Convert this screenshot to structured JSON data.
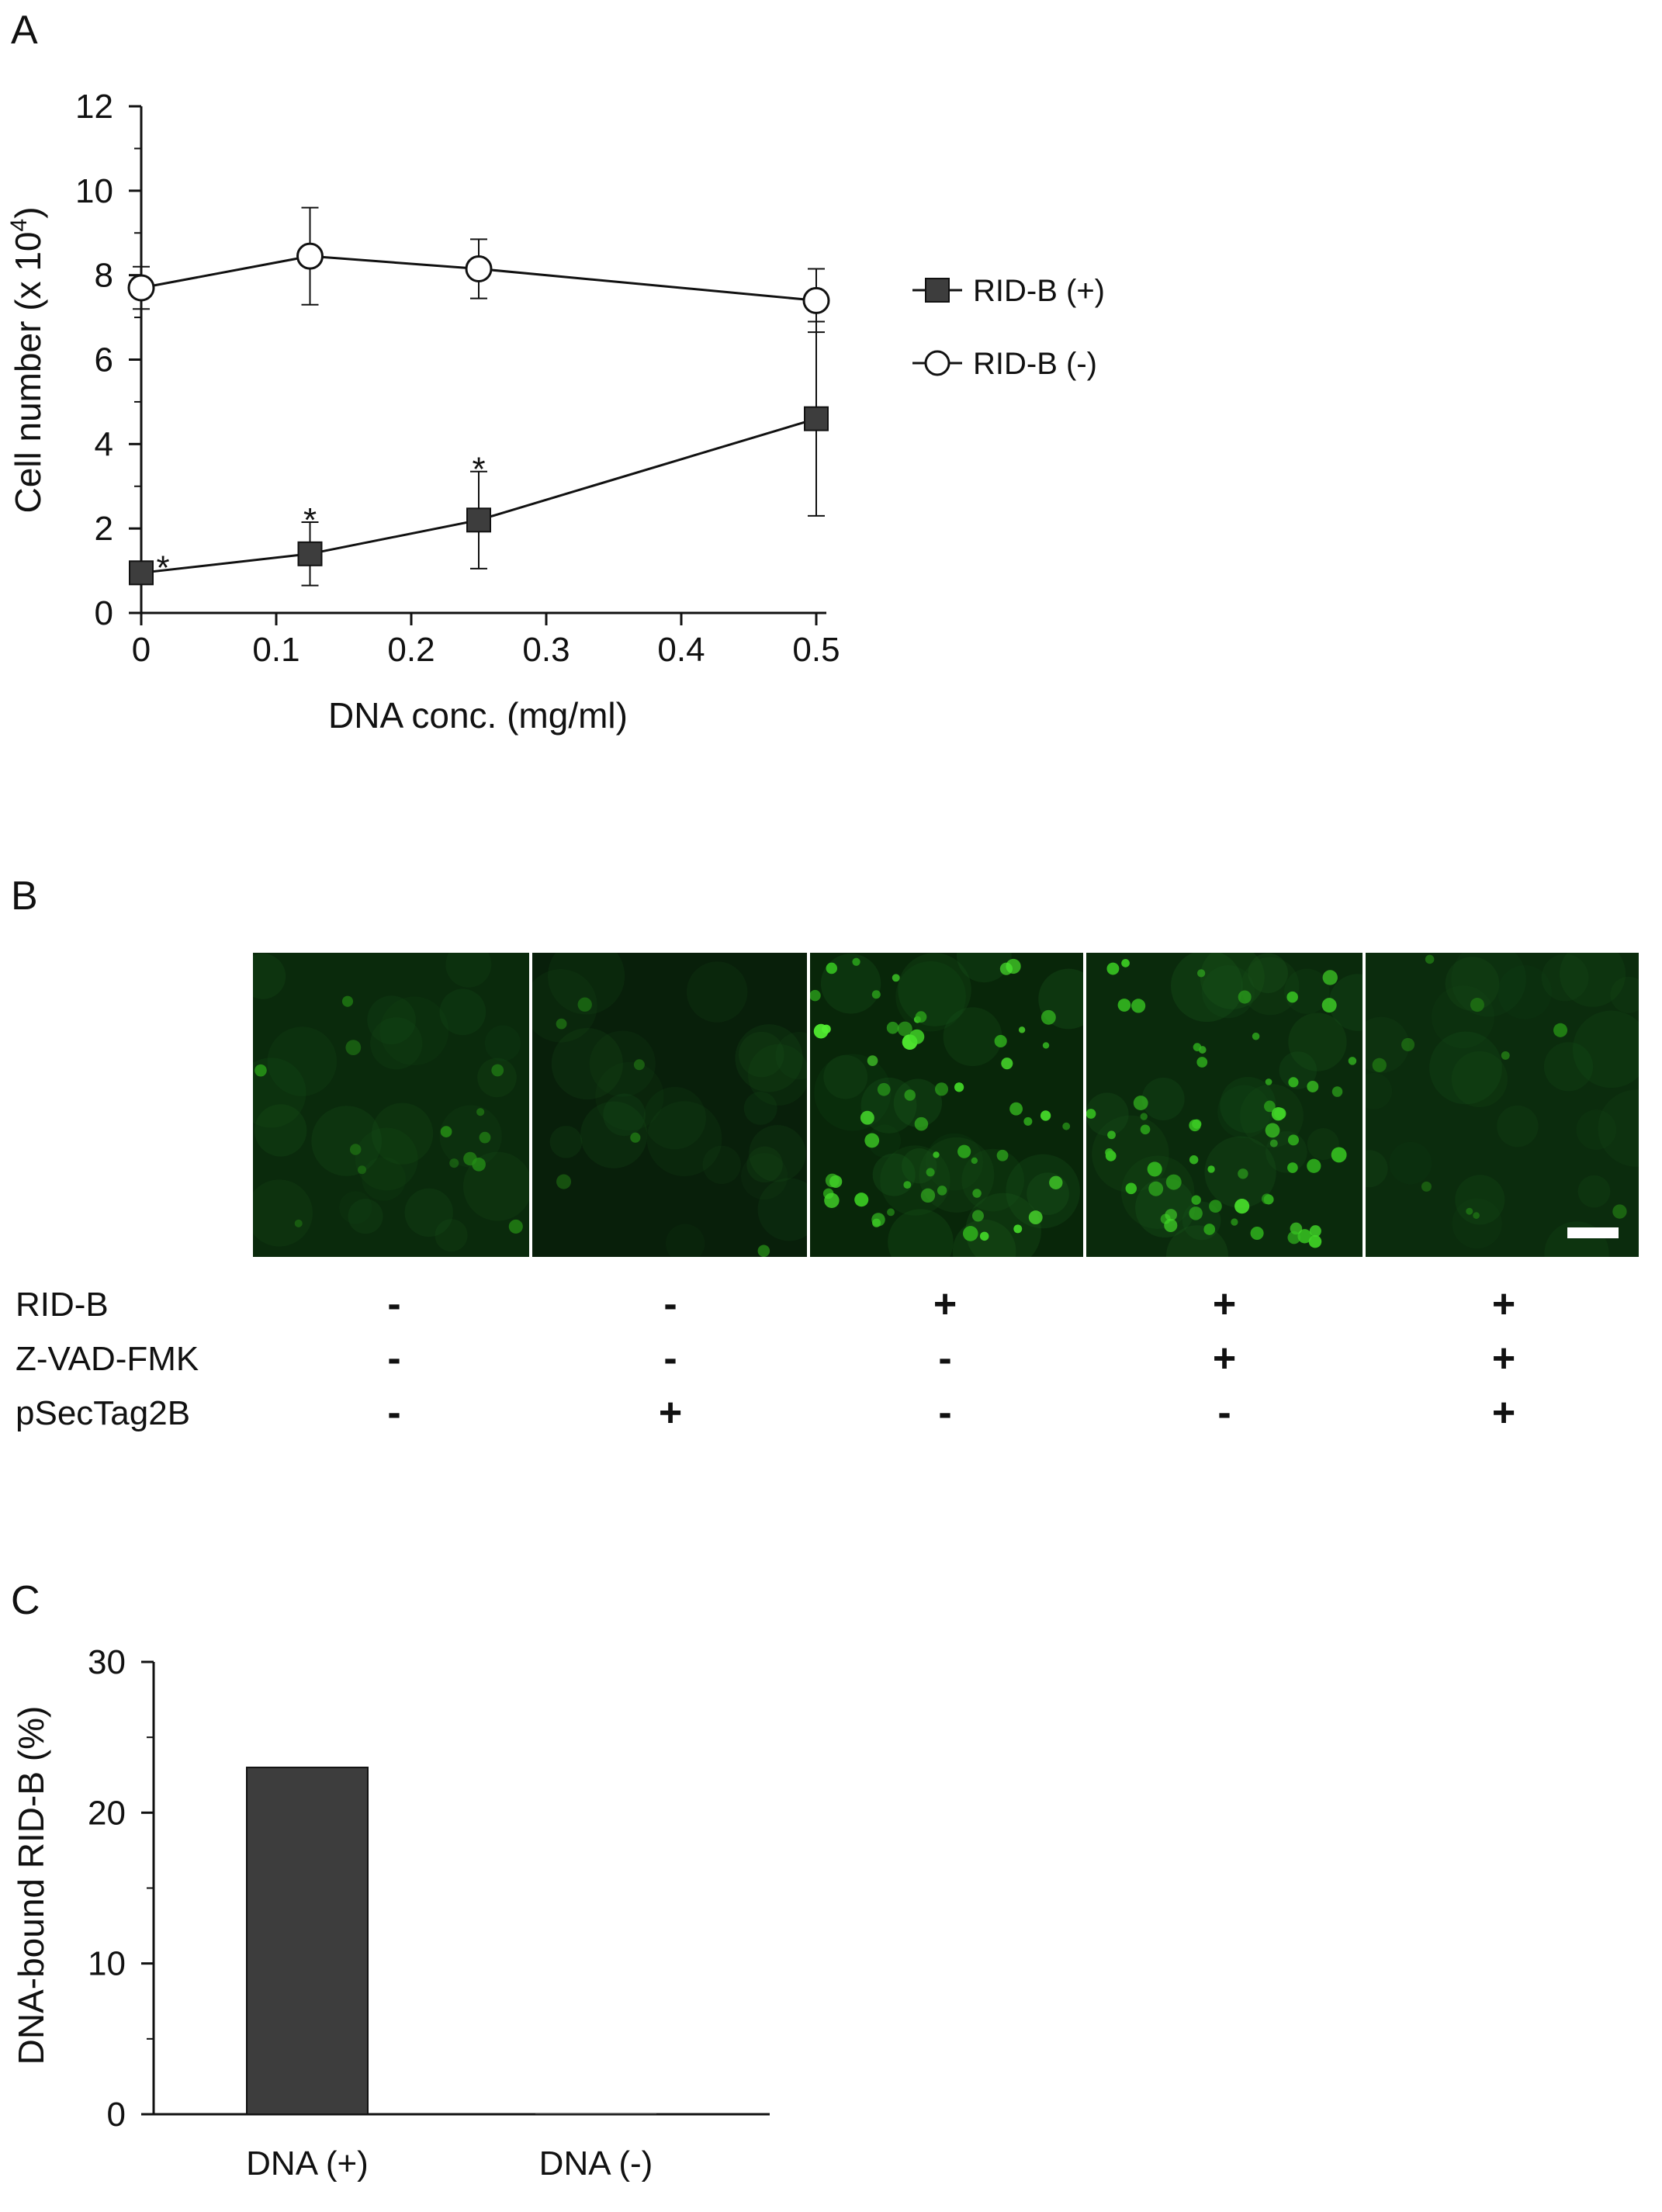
{
  "panel_labels": {
    "a": "A",
    "b": "B",
    "c": "C"
  },
  "colors": {
    "filled": "#3d3d3d",
    "open": "#ffffff",
    "axis": "#111111",
    "bar": "#3d3d3d"
  },
  "chart_data": [
    {
      "type": "line",
      "panel": "A",
      "xlabel": "DNA conc. (mg/ml)",
      "ylabel": "Cell number (x 10",
      "ylabel_sup": "4",
      "ylabel_tail": ")",
      "xlim": [
        0,
        0.5
      ],
      "ylim": [
        0,
        12
      ],
      "x_ticks": [
        "0",
        "0.1",
        "0.2",
        "0.3",
        "0.4",
        "0.5"
      ],
      "y_ticks": [
        "0",
        "2",
        "4",
        "6",
        "8",
        "10",
        "12"
      ],
      "legend_position": "right",
      "series": [
        {
          "name": "RID-B (+)",
          "marker": "filled-square",
          "x": [
            0,
            0.125,
            0.25,
            0.5
          ],
          "y": [
            0.95,
            1.4,
            2.2,
            4.6
          ],
          "err": [
            0.1,
            0.75,
            1.15,
            2.3
          ],
          "sig": [
            "*",
            "*",
            "*",
            ""
          ]
        },
        {
          "name": "RID-B (-)",
          "marker": "open-circle",
          "x": [
            0,
            0.125,
            0.25,
            0.5
          ],
          "y": [
            7.7,
            8.45,
            8.15,
            7.4
          ],
          "err": [
            0.5,
            1.15,
            0.7,
            0.75
          ],
          "sig": [
            "",
            "",
            "",
            ""
          ]
        }
      ]
    },
    {
      "type": "bar",
      "panel": "C",
      "categories": [
        "DNA (+)",
        "DNA (-)"
      ],
      "values": [
        23,
        0
      ],
      "ylabel": "DNA-bound RID-B (%)",
      "xlabel": "",
      "ylim": [
        0,
        30
      ],
      "y_ticks": [
        "0",
        "10",
        "20",
        "30"
      ]
    }
  ],
  "panel_b": {
    "row_labels": [
      "RID-B",
      "Z-VAD-FMK",
      "pSecTag2B"
    ],
    "signs": [
      [
        "-",
        "-",
        "+",
        "+",
        "+"
      ],
      [
        "-",
        "-",
        "-",
        "+",
        "+"
      ],
      [
        "-",
        "+",
        "-",
        "-",
        "+"
      ]
    ],
    "image_tiles": [
      {
        "base": "#0a2a0c",
        "cells": 14,
        "brightness": 0.35,
        "seed": 11
      },
      {
        "base": "#081f0a",
        "cells": 6,
        "brightness": 0.22,
        "seed": 23
      },
      {
        "base": "#082609",
        "cells": 55,
        "brightness": 0.95,
        "seed": 37
      },
      {
        "base": "#0a2a0c",
        "cells": 60,
        "brightness": 0.85,
        "seed": 41
      },
      {
        "base": "#0b2c0d",
        "cells": 10,
        "brightness": 0.25,
        "seed": 53
      }
    ]
  }
}
